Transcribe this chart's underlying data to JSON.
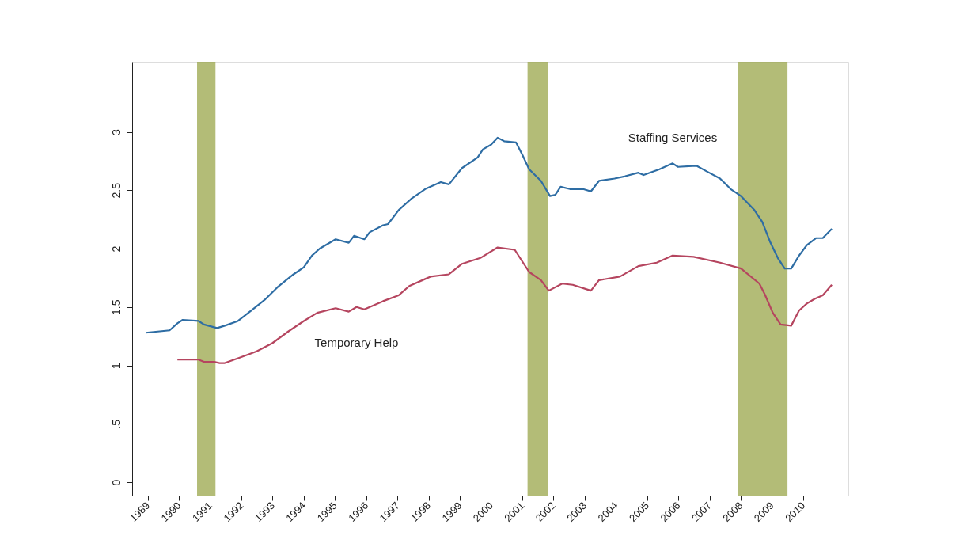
{
  "chart_data": {
    "type": "line",
    "xlim": [
      1988.5,
      2011.45
    ],
    "ylim": [
      -0.115,
      3.6
    ],
    "xticks": [
      1989,
      1990,
      1991,
      1992,
      1993,
      1994,
      1995,
      1996,
      1997,
      1998,
      1999,
      2000,
      2001,
      2002,
      2003,
      2004,
      2005,
      2006,
      2007,
      2008,
      2009,
      2010
    ],
    "yticks": [
      0,
      {
        "value": 0.5,
        "label": ".5"
      },
      1,
      1.5,
      2,
      2.5,
      3
    ],
    "series": [
      {
        "name": "Staffing Services",
        "color": "#2e6da4",
        "x": [
          1988.94,
          1989.7,
          1989.95,
          1990.12,
          1990.63,
          1990.8,
          1991.22,
          1991.47,
          1991.89,
          1992.32,
          1992.74,
          1993.16,
          1993.67,
          1994.0,
          1994.26,
          1994.51,
          1995.02,
          1995.44,
          1995.61,
          1995.94,
          1996.11,
          1996.54,
          1996.7,
          1997.04,
          1997.46,
          1997.89,
          1998.06,
          1998.39,
          1998.65,
          1999.07,
          1999.57,
          1999.74,
          2000.0,
          2000.21,
          2000.42,
          2000.8,
          2001.01,
          2001.22,
          2001.6,
          2001.89,
          2002.06,
          2002.23,
          2002.53,
          2002.95,
          2003.2,
          2003.46,
          2003.96,
          2004.3,
          2004.72,
          2004.89,
          2005.4,
          2005.82,
          2005.99,
          2006.58,
          2006.92,
          2007.34,
          2007.68,
          2008.01,
          2008.44,
          2008.69,
          2008.94,
          2009.19,
          2009.41,
          2009.62,
          2009.87,
          2010.12,
          2010.42,
          2010.63,
          2010.92
        ],
        "values": [
          1.28,
          1.3,
          1.36,
          1.39,
          1.38,
          1.35,
          1.32,
          1.34,
          1.38,
          1.47,
          1.56,
          1.67,
          1.78,
          1.84,
          1.94,
          2.0,
          2.08,
          2.05,
          2.11,
          2.08,
          2.14,
          2.2,
          2.21,
          2.33,
          2.43,
          2.51,
          2.53,
          2.57,
          2.55,
          2.69,
          2.78,
          2.85,
          2.89,
          2.95,
          2.92,
          2.91,
          2.8,
          2.68,
          2.58,
          2.45,
          2.46,
          2.53,
          2.51,
          2.51,
          2.49,
          2.58,
          2.6,
          2.62,
          2.65,
          2.63,
          2.68,
          2.73,
          2.7,
          2.71,
          2.66,
          2.6,
          2.51,
          2.45,
          2.33,
          2.23,
          2.06,
          1.92,
          1.83,
          1.83,
          1.94,
          2.03,
          2.09,
          2.09,
          2.17
        ]
      },
      {
        "name": "Temporary Help",
        "color": "#b5455f",
        "x": [
          1989.95,
          1990.63,
          1990.8,
          1991.13,
          1991.3,
          1991.47,
          1991.98,
          1992.49,
          1992.99,
          1993.5,
          1994.0,
          1994.43,
          1995.02,
          1995.44,
          1995.69,
          1995.94,
          1996.54,
          1997.04,
          1997.38,
          1997.89,
          1998.06,
          1998.65,
          1999.07,
          1999.66,
          2000.21,
          2000.76,
          2001.22,
          2001.6,
          2001.85,
          2002.28,
          2002.62,
          2003.2,
          2003.46,
          2004.13,
          2004.72,
          2005.31,
          2005.82,
          2006.49,
          2007.34,
          2008.01,
          2008.6,
          2008.77,
          2009.03,
          2009.28,
          2009.62,
          2009.87,
          2010.12,
          2010.37,
          2010.63,
          2010.92
        ],
        "values": [
          1.05,
          1.05,
          1.03,
          1.03,
          1.02,
          1.02,
          1.07,
          1.12,
          1.19,
          1.29,
          1.38,
          1.45,
          1.49,
          1.46,
          1.5,
          1.48,
          1.55,
          1.6,
          1.68,
          1.74,
          1.76,
          1.78,
          1.87,
          1.92,
          2.01,
          1.99,
          1.8,
          1.73,
          1.64,
          1.7,
          1.69,
          1.64,
          1.73,
          1.76,
          1.85,
          1.88,
          1.94,
          1.93,
          1.88,
          1.83,
          1.7,
          1.61,
          1.45,
          1.35,
          1.34,
          1.47,
          1.53,
          1.57,
          1.6,
          1.69
        ]
      }
    ],
    "bands": [
      {
        "axis": "x",
        "from": 1990.58,
        "to": 1991.17,
        "color": "#9aa54a"
      },
      {
        "axis": "x",
        "from": 2001.17,
        "to": 2001.83,
        "color": "#9aa54a"
      },
      {
        "axis": "x",
        "from": 2007.92,
        "to": 2009.5,
        "color": "#9aa54a"
      }
    ]
  }
}
